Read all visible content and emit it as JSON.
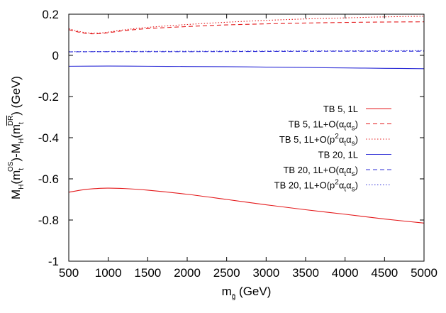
{
  "chart_data": {
    "type": "line",
    "xlabel": {
      "main": "m",
      "sub": "g̃",
      "unit": " (GeV)"
    },
    "ylabel": {
      "p1": "M",
      "s1": "H",
      "p2": "(m",
      "s2": "t",
      "sup2": "OS",
      "p3": ")-M",
      "s3": "H",
      "p4": "(m",
      "s4": "t",
      "sup4": "DR",
      "p5": ") (GeV)"
    },
    "xlim": [
      500,
      5000
    ],
    "ylim": [
      -1,
      0.2
    ],
    "xticks": [
      500,
      1000,
      1500,
      2000,
      2500,
      3000,
      3500,
      4000,
      4500,
      5000
    ],
    "yticks": [
      -1,
      -0.8,
      -0.6,
      -0.4,
      -0.2,
      0,
      0.2
    ],
    "xtick_labels": [
      "500",
      "1000",
      "1500",
      "2000",
      "2500",
      "3000",
      "3500",
      "4000",
      "4500",
      "5000"
    ],
    "ytick_labels": [
      "-1",
      "-0.8",
      "-0.6",
      "-0.4",
      "-0.2",
      "0",
      "0.2"
    ],
    "grid": false,
    "legend_position": "right",
    "series": [
      {
        "name": "TB 5, 1L",
        "label": {
          "pre": "TB 5, 1L",
          "parts": []
        },
        "color": "#e41a1c",
        "dash": "solid",
        "x": [
          500,
          700,
          900,
          1000,
          1200,
          1500,
          2000,
          2500,
          3000,
          3500,
          4000,
          4500,
          5000
        ],
        "y": [
          -0.665,
          -0.652,
          -0.646,
          -0.645,
          -0.647,
          -0.655,
          -0.675,
          -0.7,
          -0.726,
          -0.75,
          -0.772,
          -0.795,
          -0.815
        ]
      },
      {
        "name": "TB 5, 1L+O(αtαs)",
        "label": {
          "pre": "TB 5, 1L+O(",
          "parts": [
            [
              "α",
              "t"
            ],
            [
              "α",
              "s"
            ]
          ],
          "post": ")"
        },
        "color": "#e41a1c",
        "dash": "6,4",
        "x": [
          500,
          600,
          700,
          800,
          900,
          1000,
          1200,
          1500,
          2000,
          2500,
          3000,
          3500,
          4000,
          4500,
          5000
        ],
        "y": [
          0.125,
          0.115,
          0.108,
          0.105,
          0.106,
          0.11,
          0.12,
          0.13,
          0.14,
          0.148,
          0.153,
          0.157,
          0.16,
          0.162,
          0.163
        ]
      },
      {
        "name": "TB 5, 1L+O(p2αtαs)",
        "label": {
          "pre": "TB 5, 1L+O(p",
          "sup": "2",
          "parts": [
            [
              "α",
              "t"
            ],
            [
              "α",
              "s"
            ]
          ],
          "post": ")"
        },
        "color": "#e41a1c",
        "dash": "1.5,2.5",
        "x": [
          500,
          600,
          700,
          800,
          900,
          1000,
          1200,
          1500,
          2000,
          2500,
          3000,
          3500,
          4000,
          4500,
          5000
        ],
        "y": [
          0.13,
          0.119,
          0.111,
          0.108,
          0.109,
          0.113,
          0.124,
          0.136,
          0.15,
          0.161,
          0.17,
          0.177,
          0.182,
          0.187,
          0.19
        ]
      },
      {
        "name": "TB 20, 1L",
        "label": {
          "pre": "TB 20, 1L",
          "parts": []
        },
        "color": "#2b2bd6",
        "dash": "solid",
        "x": [
          500,
          1000,
          1500,
          2000,
          2500,
          3000,
          3500,
          4000,
          4500,
          5000
        ],
        "y": [
          -0.053,
          -0.052,
          -0.053,
          -0.054,
          -0.055,
          -0.057,
          -0.059,
          -0.061,
          -0.063,
          -0.065
        ]
      },
      {
        "name": "TB 20, 1L+O(αtαs)",
        "label": {
          "pre": "TB 20, 1L+O(",
          "parts": [
            [
              "α",
              "t"
            ],
            [
              "α",
              "s"
            ]
          ],
          "post": ")"
        },
        "color": "#2b2bd6",
        "dash": "6,4",
        "x": [
          500,
          1000,
          2000,
          3000,
          4000,
          5000
        ],
        "y": [
          0.017,
          0.018,
          0.018,
          0.019,
          0.02,
          0.02
        ]
      },
      {
        "name": "TB 20, 1L+O(p2αtαs)",
        "label": {
          "pre": "TB 20, 1L+O(p",
          "sup": "2",
          "parts": [
            [
              "α",
              "t"
            ],
            [
              "α",
              "s"
            ]
          ],
          "post": ")"
        },
        "color": "#2b2bd6",
        "dash": "1.5,2.5",
        "x": [
          500,
          1000,
          2000,
          3000,
          4000,
          5000
        ],
        "y": [
          0.018,
          0.019,
          0.02,
          0.021,
          0.022,
          0.023
        ]
      }
    ]
  }
}
